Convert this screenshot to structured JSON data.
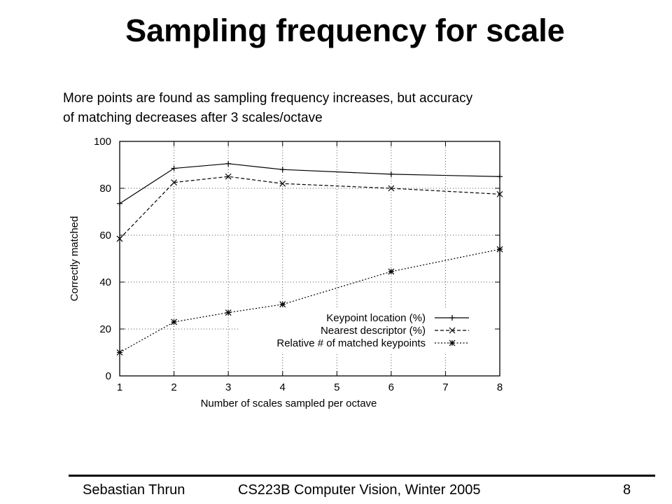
{
  "slide": {
    "title": "Sampling frequency for scale",
    "caption_lines": [
      "More points are found as sampling frequency increases, but accuracy",
      "of matching decreases after 3 scales/octave"
    ]
  },
  "footer": {
    "author": "Sebastian Thrun",
    "course": "CS223B Computer Vision, Winter 2005",
    "page": "8"
  },
  "chart_data": {
    "type": "line",
    "title": "",
    "xlabel": "Number of scales sampled per octave",
    "ylabel": "Correctly matched",
    "xlim": [
      1,
      8
    ],
    "ylim": [
      0,
      100
    ],
    "x_ticks": [
      1,
      2,
      3,
      4,
      5,
      6,
      7,
      8
    ],
    "y_ticks": [
      0,
      20,
      40,
      60,
      80,
      100
    ],
    "grid": true,
    "legend_position": "bottom-right",
    "series": [
      {
        "name": "Keypoint location (%)",
        "marker": "plus",
        "line_style": "solid",
        "x": [
          1,
          2,
          3,
          4,
          6,
          8
        ],
        "y": [
          73.5,
          88.5,
          90.5,
          88,
          86,
          85
        ]
      },
      {
        "name": "Nearest descriptor (%)",
        "marker": "cross",
        "line_style": "dashed",
        "x": [
          1,
          2,
          3,
          4,
          6,
          8
        ],
        "y": [
          58.5,
          82.5,
          85,
          82,
          80,
          77.5
        ]
      },
      {
        "name": "Relative # of matched keypoints",
        "marker": "star",
        "line_style": "dotted",
        "x": [
          1,
          2,
          3,
          4,
          6,
          8
        ],
        "y": [
          10,
          23,
          27,
          30.5,
          44.5,
          54
        ]
      }
    ]
  }
}
